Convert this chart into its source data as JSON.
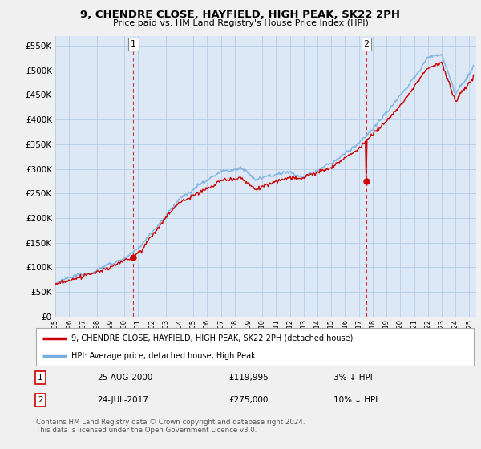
{
  "title": "9, CHENDRE CLOSE, HAYFIELD, HIGH PEAK, SK22 2PH",
  "subtitle": "Price paid vs. HM Land Registry's House Price Index (HPI)",
  "ytick_values": [
    0,
    50000,
    100000,
    150000,
    200000,
    250000,
    300000,
    350000,
    400000,
    450000,
    500000,
    550000
  ],
  "xlim_start": 1995.0,
  "xlim_end": 2025.5,
  "ylim_min": 0,
  "ylim_max": 570000,
  "hpi_color": "#7ab0e0",
  "price_color": "#CC0000",
  "transaction1_year": 2000.65,
  "transaction1_price": 119995,
  "transaction2_year": 2017.55,
  "transaction2_price": 275000,
  "legend_line1": "9, CHENDRE CLOSE, HAYFIELD, HIGH PEAK, SK22 2PH (detached house)",
  "legend_line2": "HPI: Average price, detached house, High Peak",
  "transaction1_date": "25-AUG-2000",
  "transaction1_text": "£119,995",
  "transaction1_pct": "3% ↓ HPI",
  "transaction2_date": "24-JUL-2017",
  "transaction2_text": "£275,000",
  "transaction2_pct": "10% ↓ HPI",
  "footer": "Contains HM Land Registry data © Crown copyright and database right 2024.\nThis data is licensed under the Open Government Licence v3.0.",
  "bg_color": "#f0f0f0",
  "plot_bg_color": "#dce8f5",
  "grid_color": "#b0c8e0"
}
